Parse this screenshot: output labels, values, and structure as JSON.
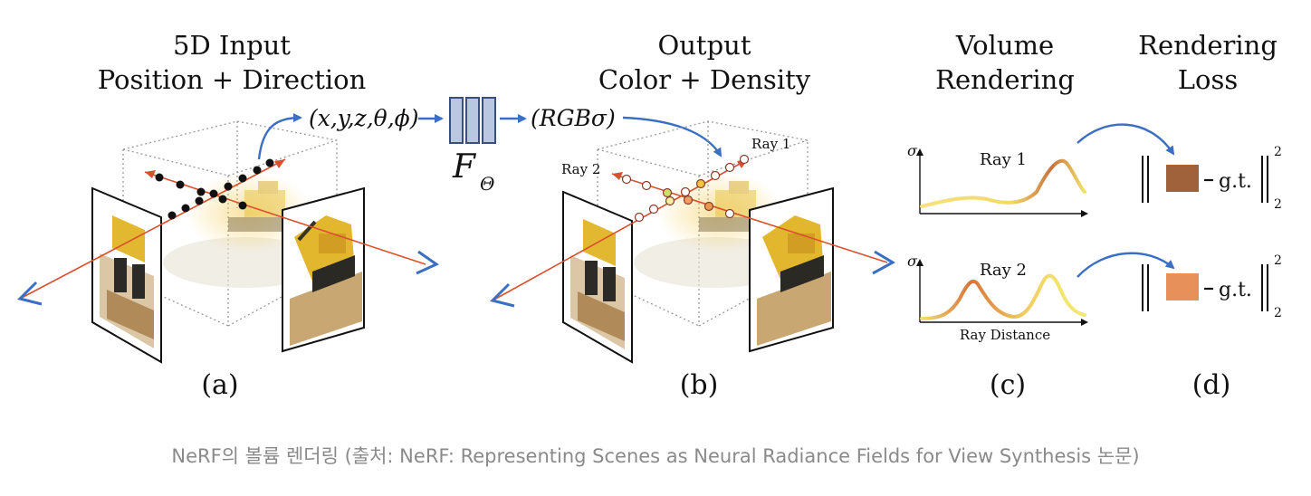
{
  "panels": {
    "a": {
      "title_line1": "5D Input",
      "title_line2": "Position + Direction",
      "input_label": "(x,y,z,θ,ϕ)",
      "network_label": "F",
      "network_subscript": "Θ",
      "letter": "(a)"
    },
    "b": {
      "title_line1": "Output",
      "title_line2": "Color + Density",
      "output_label": "(RGBσ)",
      "ray1_label": "Ray 1",
      "ray2_label": "Ray 2",
      "letter": "(b)"
    },
    "c": {
      "title_line1": "Volume",
      "title_line2": "Rendering",
      "sigma_symbol": "σ",
      "plot1_label": "Ray 1",
      "plot2_label": "Ray 2",
      "x_axis_label": "Ray Distance",
      "letter": "(c)"
    },
    "d": {
      "title_line1": "Rendering",
      "title_line2": "Loss",
      "gt_label": "g.t.",
      "norm_sup": "2",
      "norm_sub": "2",
      "swatch1_color": "#a0623a",
      "swatch2_color": "#e8905a",
      "letter": "(d)"
    }
  },
  "colors": {
    "ray": "#d9502f",
    "arrow_blue": "#3b6fc4",
    "network_fill": "#b9c8e0",
    "network_stroke": "#37507c"
  },
  "caption": "NeRF의 볼륨 렌더링 (출처: NeRF: Representing Scenes as Neural Radiance Fields for View Synthesis 논문)"
}
